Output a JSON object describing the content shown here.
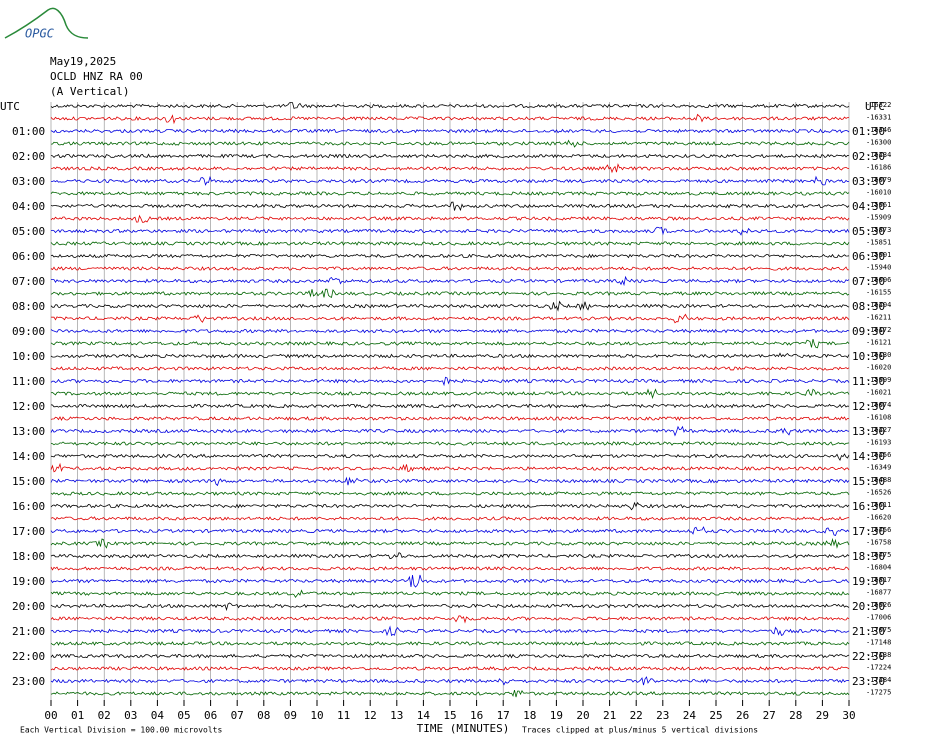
{
  "logo": "OPGC",
  "header": {
    "date": "May19,2025",
    "station": "OCLD HNZ RA 00",
    "component": "(A Vertical)"
  },
  "left_axis": {
    "title": "UTC",
    "labels": [
      "01:00",
      "02:00",
      "03:00",
      "04:00",
      "05:00",
      "06:00",
      "07:00",
      "08:00",
      "09:00",
      "10:00",
      "11:00",
      "12:00",
      "13:00",
      "14:00",
      "15:00",
      "16:00",
      "17:00",
      "18:00",
      "19:00",
      "20:00",
      "21:00",
      "22:00",
      "23:00"
    ]
  },
  "right_axis": {
    "title": "UTC",
    "labels": [
      "01:30",
      "02:30",
      "03:30",
      "04:30",
      "05:30",
      "06:30",
      "07:30",
      "08:30",
      "09:30",
      "10:30",
      "11:30",
      "12:30",
      "13:30",
      "14:30",
      "15:30",
      "16:30",
      "17:30",
      "18:30",
      "19:30",
      "20:30",
      "21:30",
      "22:30",
      "23:30"
    ],
    "offsets": [
      -16322,
      -16331,
      -16346,
      -16300,
      -16234,
      -16186,
      -16079,
      -16010,
      -15961,
      -15909,
      -15873,
      -15851,
      -15901,
      -15940,
      -16006,
      -16155,
      -16204,
      -16211,
      -16172,
      -16121,
      -16130,
      -16020,
      -15999,
      -16021,
      -16074,
      -16108,
      -16227,
      -16193,
      -16256,
      -16349,
      -16488,
      -16526,
      -16611,
      -16620,
      -16756,
      -16758,
      -16775,
      -16804,
      -16817,
      -16877,
      -16926,
      -17006,
      -17075,
      -17148,
      -17138,
      -17224,
      -17284,
      -17275
    ]
  },
  "x_axis": {
    "title": "TIME (MINUTES)",
    "ticks": [
      "00",
      "01",
      "02",
      "03",
      "04",
      "05",
      "06",
      "07",
      "08",
      "09",
      "10",
      "11",
      "12",
      "13",
      "14",
      "15",
      "16",
      "17",
      "18",
      "19",
      "20",
      "21",
      "22",
      "23",
      "24",
      "25",
      "26",
      "27",
      "28",
      "29",
      "30"
    ]
  },
  "footer": {
    "scale": "Each Vertical Division =  100.00 microvolts",
    "clip": "Traces clipped at plus/minus 5 vertical divisions"
  },
  "trace_colors": [
    "#000000",
    "#e00000",
    "#0000e0",
    "#006400"
  ]
}
